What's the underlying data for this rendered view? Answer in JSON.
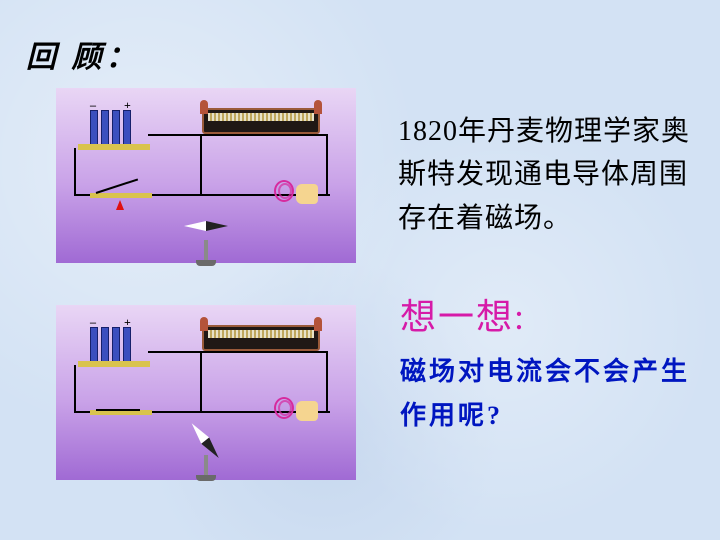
{
  "slide": {
    "background_color": "#d3e2f4",
    "title": "回 顾：",
    "title_color": "#000000",
    "title_fontsize": 30,
    "body": "1820年丹麦物理学家奥斯特发现通电导体周围存在着磁场。",
    "body_color": "#000000",
    "body_fontsize": 28,
    "think_label": "想一想:",
    "think_color": "#d61aa8",
    "think_fontsize": 36,
    "question": "磁场对电流会不会产生作用呢?",
    "question_color": "#0016c0",
    "question_fontsize": 26
  },
  "diagrams": {
    "panel_gradient": [
      "#e9d6f5",
      "#c9a2e8",
      "#a06ad4"
    ],
    "battery_color": "#3b4fbf",
    "bench_color": "#d9c34d",
    "meter_body": "#201815",
    "meter_frame": "#9a5a3a",
    "wire_color": "#000000",
    "hand_loop_color": "#d62a9e",
    "hand_skin": "#f5d590",
    "compass_needle_light": "#ffffff",
    "compass_needle_dark": "#222222",
    "compass_base": "#6a6a6a",
    "red_arrow": "#e01010",
    "top": {
      "switch_state": "open",
      "compass_deflected": false
    },
    "bottom": {
      "switch_state": "closed",
      "compass_deflected": true
    }
  }
}
